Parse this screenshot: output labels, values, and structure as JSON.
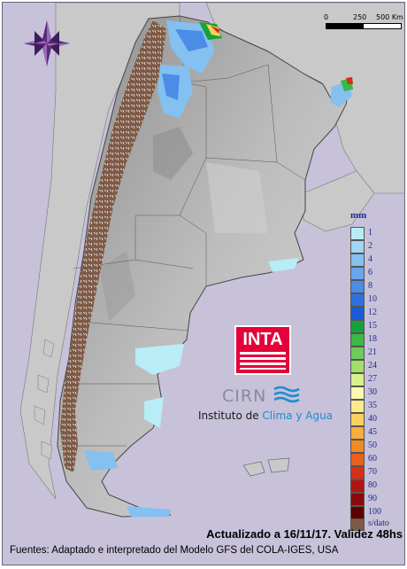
{
  "scalebar": {
    "labels": [
      "0",
      "250",
      "500 Km"
    ]
  },
  "legend": {
    "unit": "mm",
    "items": [
      {
        "label": "1",
        "color": "#b8ecf7"
      },
      {
        "label": "2",
        "color": "#9fd6f5"
      },
      {
        "label": "4",
        "color": "#84c0f0"
      },
      {
        "label": "6",
        "color": "#67a6ec"
      },
      {
        "label": "8",
        "color": "#4a8ce6"
      },
      {
        "label": "10",
        "color": "#2f72df"
      },
      {
        "label": "12",
        "color": "#1b5cd6"
      },
      {
        "label": "15",
        "color": "#18a13a"
      },
      {
        "label": "18",
        "color": "#3cb848"
      },
      {
        "label": "21",
        "color": "#6dcb58"
      },
      {
        "label": "24",
        "color": "#a3de6b"
      },
      {
        "label": "27",
        "color": "#d6f08a"
      },
      {
        "label": "30",
        "color": "#fdf7b0"
      },
      {
        "label": "35",
        "color": "#fde98c"
      },
      {
        "label": "40",
        "color": "#fbd15e"
      },
      {
        "label": "45",
        "color": "#f8ae3a"
      },
      {
        "label": "50",
        "color": "#f28a23"
      },
      {
        "label": "60",
        "color": "#e8601c"
      },
      {
        "label": "70",
        "color": "#d43017"
      },
      {
        "label": "80",
        "color": "#b21410"
      },
      {
        "label": "90",
        "color": "#8a0a0a"
      },
      {
        "label": "100",
        "color": "#5c0000"
      }
    ],
    "no_data": {
      "label": "s/dato",
      "color": "#7d5a47"
    }
  },
  "logo": {
    "inta": "INTA",
    "cirn": "CIRN",
    "instituto_prefix": "Instituto de ",
    "instituto_accent": "Clima y Agua",
    "colors": {
      "inta_red": "#e4003a",
      "cirn_gray": "#8a8b99",
      "accent_blue": "#1e8dcf"
    }
  },
  "footer": {
    "updated": "Actualizado a 16/11/17. Validez 48hs",
    "sources": "Fuentes: Adaptado e interpretado del Modelo GFS del COLA-IGES, USA"
  },
  "map": {
    "background_color": "#c7c1d9",
    "land_color": "#b8b8b8",
    "icons": [
      "compass-rose-icon"
    ]
  }
}
